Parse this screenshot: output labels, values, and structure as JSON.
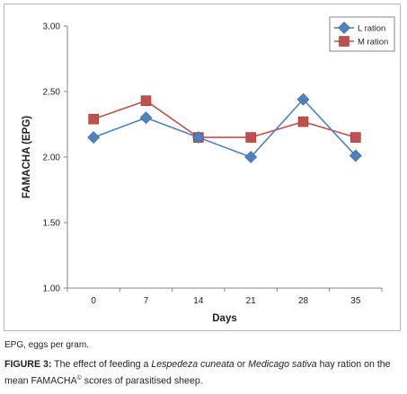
{
  "chart_data": {
    "type": "line",
    "xlabel": "Days",
    "ylabel": "FAMACHA (EPG)",
    "x": [
      "0",
      "7",
      "14",
      "21",
      "28",
      "35"
    ],
    "ylim": [
      1.0,
      3.0
    ],
    "yticks": [
      "1.00",
      "1.50",
      "2.00",
      "2.50",
      "3.00"
    ],
    "ytick_values": [
      1.0,
      1.5,
      2.0,
      2.5,
      3.0
    ],
    "grid": false,
    "legend_position": "top-right",
    "series": [
      {
        "name": "L ration",
        "values": [
          2.15,
          2.3,
          2.15,
          2.0,
          2.44,
          2.01
        ],
        "color": "#4f81bd",
        "marker": "diamond"
      },
      {
        "name": "M ration",
        "values": [
          2.29,
          2.43,
          2.15,
          2.15,
          2.27,
          2.15
        ],
        "color": "#c0504d",
        "marker": "square"
      }
    ]
  },
  "footnote": "EPG, eggs per gram.",
  "caption": {
    "label": "FIGURE 3:",
    "text_1": " The effect of feeding a ",
    "species_1": "Lespedeza cuneata",
    "text_2": " or ",
    "species_2": "Medicago sativa",
    "text_3": " hay ration on the mean FAMACHA",
    "superscript": "©",
    "text_4": " scores of parasitised sheep."
  }
}
